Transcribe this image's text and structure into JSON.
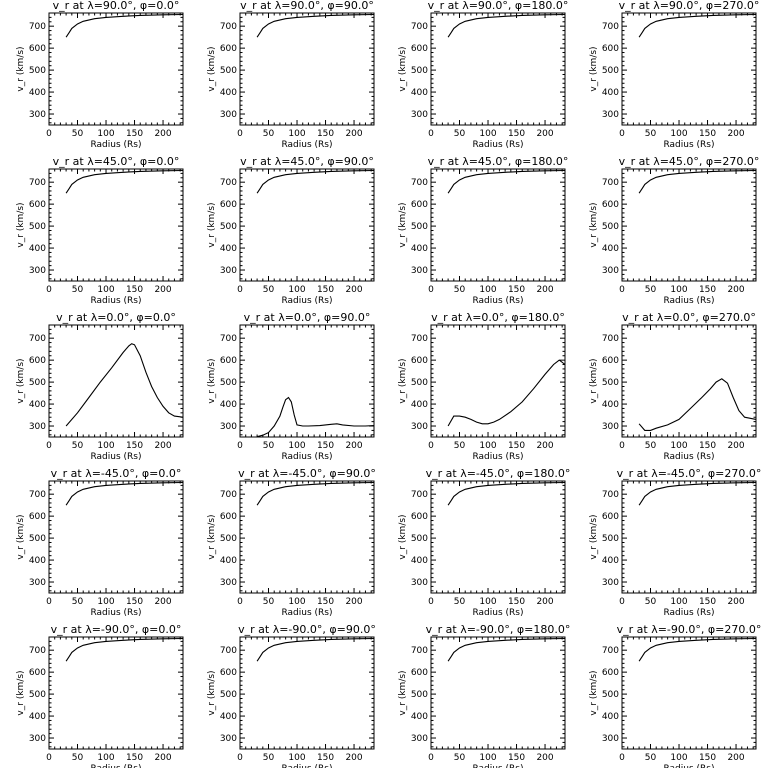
{
  "chart_data": {
    "type": "line",
    "layout": "5 rows x 4 columns grid of line plots",
    "shared_axes": {
      "xlabel": "Radius (Rs)",
      "ylabel": "v_r (km/s)",
      "xlim": [
        0,
        235
      ],
      "ylim": [
        250,
        760
      ],
      "xticks": [
        0,
        50,
        100,
        150,
        200
      ],
      "yticks": [
        300,
        400,
        500,
        600,
        700
      ],
      "grid": false,
      "legend": "none"
    },
    "panels": [
      {
        "lat": "90.0",
        "lon": "0.0",
        "title": "v_r at λ=90.0°, φ=0.0°",
        "x": [
          30,
          35,
          40,
          50,
          60,
          80,
          100,
          130,
          160,
          200,
          235
        ],
        "y": [
          650,
          670,
          690,
          710,
          722,
          734,
          740,
          745,
          749,
          752,
          753
        ]
      },
      {
        "lat": "90.0",
        "lon": "90.0",
        "title": "v_r at λ=90.0°, φ=90.0°",
        "x": [
          30,
          35,
          40,
          50,
          60,
          80,
          100,
          130,
          160,
          200,
          235
        ],
        "y": [
          650,
          670,
          690,
          710,
          722,
          734,
          740,
          745,
          749,
          752,
          753
        ]
      },
      {
        "lat": "90.0",
        "lon": "180.0",
        "title": "v_r at λ=90.0°, φ=180.0°",
        "x": [
          30,
          35,
          40,
          50,
          60,
          80,
          100,
          130,
          160,
          200,
          235
        ],
        "y": [
          650,
          670,
          690,
          710,
          722,
          734,
          740,
          745,
          749,
          752,
          753
        ]
      },
      {
        "lat": "90.0",
        "lon": "270.0",
        "title": "v_r at λ=90.0°, φ=270.0°",
        "x": [
          30,
          35,
          40,
          50,
          60,
          80,
          100,
          130,
          160,
          200,
          235
        ],
        "y": [
          650,
          670,
          690,
          710,
          722,
          734,
          740,
          745,
          749,
          752,
          753
        ]
      },
      {
        "lat": "45.0",
        "lon": "0.0",
        "title": "v_r at λ=45.0°, φ=0.0°",
        "x": [
          30,
          35,
          40,
          50,
          60,
          80,
          100,
          130,
          160,
          200,
          235
        ],
        "y": [
          650,
          670,
          690,
          710,
          722,
          734,
          740,
          745,
          749,
          752,
          753
        ]
      },
      {
        "lat": "45.0",
        "lon": "90.0",
        "title": "v_r at λ=45.0°, φ=90.0°",
        "x": [
          30,
          35,
          40,
          50,
          60,
          80,
          100,
          130,
          160,
          200,
          235
        ],
        "y": [
          650,
          670,
          690,
          710,
          722,
          734,
          740,
          745,
          749,
          752,
          753
        ]
      },
      {
        "lat": "45.0",
        "lon": "180.0",
        "title": "v_r at λ=45.0°, φ=180.0°",
        "x": [
          30,
          35,
          40,
          50,
          60,
          80,
          100,
          130,
          160,
          200,
          235
        ],
        "y": [
          650,
          670,
          690,
          710,
          722,
          734,
          740,
          745,
          749,
          752,
          753
        ]
      },
      {
        "lat": "45.0",
        "lon": "270.0",
        "title": "v_r at λ=45.0°, φ=270.0°",
        "x": [
          30,
          35,
          40,
          50,
          60,
          80,
          100,
          130,
          160,
          200,
          235
        ],
        "y": [
          650,
          670,
          690,
          710,
          722,
          734,
          740,
          745,
          749,
          752,
          753
        ]
      },
      {
        "lat": "0.0",
        "lon": "0.0",
        "title": "v_r at λ=0.0°, φ=0.0°",
        "x": [
          30,
          50,
          70,
          90,
          110,
          130,
          140,
          145,
          150,
          160,
          170,
          180,
          190,
          200,
          210,
          220,
          235
        ],
        "y": [
          300,
          360,
          430,
          500,
          565,
          635,
          665,
          675,
          670,
          620,
          545,
          480,
          430,
          390,
          360,
          345,
          340
        ]
      },
      {
        "lat": "0.0",
        "lon": "90.0",
        "title": "v_r at λ=0.0°, φ=90.0°",
        "x": [
          30,
          40,
          50,
          60,
          70,
          75,
          80,
          85,
          90,
          95,
          100,
          110,
          120,
          140,
          160,
          170,
          180,
          200,
          220,
          235
        ],
        "y": [
          252,
          258,
          270,
          300,
          345,
          385,
          420,
          430,
          410,
          350,
          305,
          300,
          300,
          302,
          308,
          310,
          305,
          300,
          300,
          302
        ]
      },
      {
        "lat": "0.0",
        "lon": "180.0",
        "title": "v_r at λ=0.0°, φ=180.0°",
        "x": [
          30,
          40,
          50,
          60,
          70,
          80,
          90,
          100,
          110,
          120,
          140,
          160,
          180,
          200,
          215,
          225,
          235
        ],
        "y": [
          300,
          345,
          345,
          340,
          330,
          318,
          310,
          310,
          318,
          330,
          365,
          410,
          470,
          535,
          580,
          600,
          580
        ]
      },
      {
        "lat": "0.0",
        "lon": "270.0",
        "title": "v_r at λ=0.0°, φ=270.0°",
        "x": [
          30,
          40,
          50,
          60,
          80,
          100,
          120,
          140,
          155,
          165,
          175,
          185,
          195,
          205,
          215,
          225,
          235
        ],
        "y": [
          310,
          280,
          280,
          290,
          305,
          330,
          380,
          430,
          470,
          500,
          515,
          495,
          430,
          370,
          340,
          335,
          330
        ]
      },
      {
        "lat": "-45.0",
        "lon": "0.0",
        "title": "v_r at λ=-45.0°, φ=0.0°",
        "x": [
          30,
          35,
          40,
          50,
          60,
          80,
          100,
          130,
          160,
          200,
          235
        ],
        "y": [
          650,
          670,
          690,
          710,
          722,
          734,
          740,
          745,
          749,
          752,
          753
        ]
      },
      {
        "lat": "-45.0",
        "lon": "90.0",
        "title": "v_r at λ=-45.0°, φ=90.0°",
        "x": [
          30,
          35,
          40,
          50,
          60,
          80,
          100,
          130,
          160,
          200,
          235
        ],
        "y": [
          650,
          670,
          690,
          710,
          722,
          734,
          740,
          745,
          749,
          752,
          753
        ]
      },
      {
        "lat": "-45.0",
        "lon": "180.0",
        "title": "v_r at λ=-45.0°, φ=180.0°",
        "x": [
          30,
          35,
          40,
          50,
          60,
          80,
          100,
          130,
          160,
          200,
          235
        ],
        "y": [
          650,
          670,
          690,
          710,
          722,
          734,
          740,
          745,
          749,
          752,
          753
        ]
      },
      {
        "lat": "-45.0",
        "lon": "270.0",
        "title": "v_r at λ=-45.0°, φ=270.0°",
        "x": [
          30,
          35,
          40,
          50,
          60,
          80,
          100,
          130,
          160,
          200,
          235
        ],
        "y": [
          650,
          670,
          690,
          710,
          722,
          734,
          740,
          745,
          749,
          752,
          753
        ]
      },
      {
        "lat": "-90.0",
        "lon": "0.0",
        "title": "v_r at λ=-90.0°, φ=0.0°",
        "x": [
          30,
          35,
          40,
          50,
          60,
          80,
          100,
          130,
          160,
          200,
          235
        ],
        "y": [
          650,
          670,
          690,
          710,
          722,
          734,
          740,
          745,
          749,
          752,
          753
        ]
      },
      {
        "lat": "-90.0",
        "lon": "90.0",
        "title": "v_r at λ=-90.0°, φ=90.0°",
        "x": [
          30,
          35,
          40,
          50,
          60,
          80,
          100,
          130,
          160,
          200,
          235
        ],
        "y": [
          650,
          670,
          690,
          710,
          722,
          734,
          740,
          745,
          749,
          752,
          753
        ]
      },
      {
        "lat": "-90.0",
        "lon": "180.0",
        "title": "v_r at λ=-90.0°, φ=180.0°",
        "x": [
          30,
          35,
          40,
          50,
          60,
          80,
          100,
          130,
          160,
          200,
          235
        ],
        "y": [
          650,
          670,
          690,
          710,
          722,
          734,
          740,
          745,
          749,
          752,
          753
        ]
      },
      {
        "lat": "-90.0",
        "lon": "270.0",
        "title": "v_r at λ=-90.0°, φ=270.0°",
        "x": [
          30,
          35,
          40,
          50,
          60,
          80,
          100,
          130,
          160,
          200,
          235
        ],
        "y": [
          650,
          670,
          690,
          710,
          722,
          734,
          740,
          745,
          749,
          752,
          753
        ]
      }
    ]
  }
}
